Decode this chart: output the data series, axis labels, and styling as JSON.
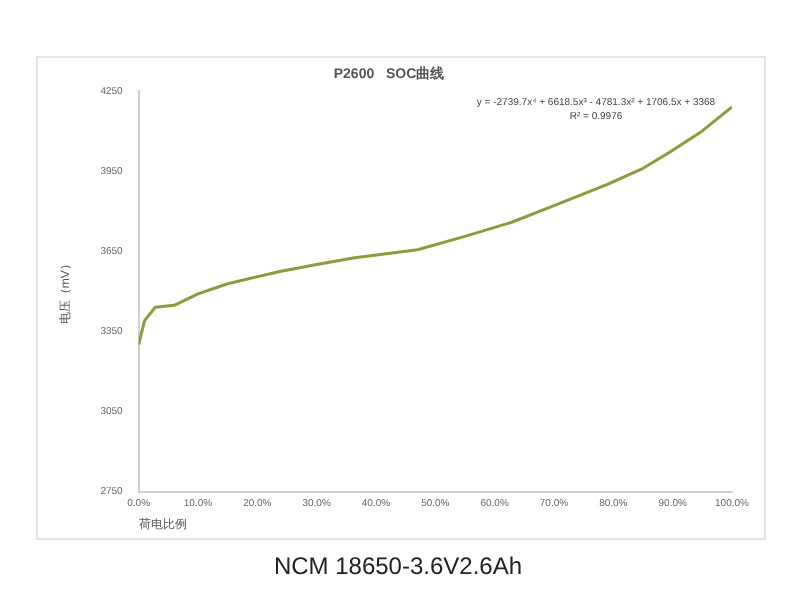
{
  "chart_data": {
    "type": "line",
    "title": "P2600   SOC曲线",
    "xlabel": "荷电比例",
    "ylabel": "电压（mV）",
    "x": [
      0,
      1,
      2.8,
      6,
      10,
      15,
      23.6,
      30,
      36.4,
      47,
      55,
      63,
      70,
      79,
      85,
      89.5,
      95,
      100
    ],
    "series": [
      {
        "color": "#8c9c3c",
        "values": [
          3300,
          3390,
          3440,
          3447,
          3490,
          3528,
          3573,
          3600,
          3625,
          3655,
          3705,
          3759,
          3820,
          3900,
          3960,
          4020,
          4100,
          4190
        ]
      }
    ],
    "xlim": [
      0,
      100
    ],
    "xticks": [
      {
        "value": 0,
        "label": "0.0%"
      },
      {
        "value": 10,
        "label": "10.0%"
      },
      {
        "value": 20,
        "label": "20.0%"
      },
      {
        "value": 30,
        "label": "30.0%"
      },
      {
        "value": 40,
        "label": "40.0%"
      },
      {
        "value": 50,
        "label": "50.0%"
      },
      {
        "value": 60,
        "label": "60.0%"
      },
      {
        "value": 70,
        "label": "70.0%"
      },
      {
        "value": 80,
        "label": "80.0%"
      },
      {
        "value": 90,
        "label": "90.0%"
      },
      {
        "value": 100,
        "label": "100.0%"
      }
    ],
    "ylim": [
      2750,
      4250
    ],
    "yticks": [
      2750,
      3050,
      3350,
      3650,
      3950,
      4250
    ],
    "grid": false,
    "legend": false,
    "marker": "none",
    "line_style": "solid",
    "annotations": [
      "y = -2739.7x⁴ + 6618.5x³ - 4781.3x² + 1706.5x + 3368\nR² = 0.9976",
      "NCM 18650-3.6V2.6Ah"
    ]
  }
}
